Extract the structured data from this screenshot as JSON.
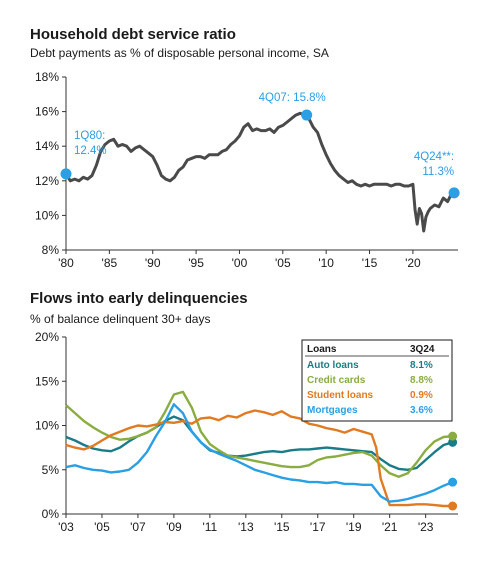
{
  "chart_data": [
    {
      "type": "line",
      "title": "Household debt service ratio",
      "subtitle": "Debt payments as % of disposable personal income, SA",
      "xlabel": "",
      "ylabel": "",
      "xlim": [
        1980,
        2025.2
      ],
      "ylim": [
        8,
        18
      ],
      "x_ticks": [
        1980,
        1985,
        1990,
        1995,
        2000,
        2005,
        2010,
        2015,
        2020
      ],
      "x_tick_labels": [
        "'80",
        "'85",
        "'90",
        "'95",
        "'00",
        "'05",
        "'10",
        "'15",
        "'20"
      ],
      "y_ticks": [
        8,
        10,
        12,
        14,
        16,
        18
      ],
      "y_tick_labels": [
        "8%",
        "10%",
        "12%",
        "14%",
        "16%",
        "18%"
      ],
      "grid": false,
      "series": [
        {
          "color": "#4a4a4a",
          "x": [
            1980.0,
            1980.5,
            1981.0,
            1981.5,
            1982.0,
            1982.5,
            1983.0,
            1983.5,
            1984.0,
            1984.5,
            1985.0,
            1985.5,
            1986.0,
            1986.5,
            1987.0,
            1987.5,
            1988.0,
            1988.5,
            1989.0,
            1989.5,
            1990.0,
            1990.5,
            1991.0,
            1991.5,
            1992.0,
            1992.5,
            1993.0,
            1993.5,
            1994.0,
            1994.5,
            1995.0,
            1995.5,
            1996.0,
            1996.5,
            1997.0,
            1997.5,
            1998.0,
            1998.5,
            1999.0,
            1999.5,
            2000.0,
            2000.5,
            2001.0,
            2001.5,
            2002.0,
            2002.5,
            2003.0,
            2003.5,
            2004.0,
            2004.5,
            2005.0,
            2005.5,
            2006.0,
            2006.5,
            2007.0,
            2007.5,
            2008.0,
            2008.5,
            2009.0,
            2009.5,
            2010.0,
            2010.5,
            2011.0,
            2011.5,
            2012.0,
            2012.5,
            2013.0,
            2013.5,
            2014.0,
            2014.5,
            2015.0,
            2015.5,
            2016.0,
            2016.5,
            2017.0,
            2017.5,
            2018.0,
            2018.5,
            2019.0,
            2019.5,
            2020.0,
            2020.25,
            2020.5,
            2020.75,
            2021.0,
            2021.25,
            2021.5,
            2021.75,
            2022.0,
            2022.5,
            2023.0,
            2023.5,
            2024.0,
            2024.5,
            2024.75
          ],
          "y": [
            12.4,
            12.0,
            12.1,
            12.0,
            12.2,
            12.1,
            12.3,
            12.9,
            13.7,
            14.1,
            14.3,
            14.4,
            14.0,
            14.1,
            14.0,
            13.7,
            13.9,
            14.0,
            13.8,
            13.6,
            13.4,
            12.9,
            12.3,
            12.1,
            12.0,
            12.2,
            12.6,
            12.8,
            13.2,
            13.3,
            13.4,
            13.4,
            13.3,
            13.5,
            13.5,
            13.5,
            13.7,
            13.8,
            14.1,
            14.3,
            14.6,
            15.1,
            15.3,
            14.9,
            15.0,
            14.9,
            14.9,
            15.0,
            14.8,
            15.1,
            15.2,
            15.4,
            15.6,
            15.8,
            15.9,
            15.8,
            15.6,
            15.1,
            14.8,
            14.1,
            13.5,
            13.0,
            12.6,
            12.3,
            12.1,
            11.9,
            12.0,
            11.8,
            11.7,
            11.8,
            11.7,
            11.8,
            11.8,
            11.8,
            11.8,
            11.7,
            11.8,
            11.8,
            11.7,
            11.7,
            11.8,
            10.3,
            9.5,
            10.4,
            10.1,
            9.1,
            9.9,
            10.2,
            10.4,
            10.6,
            10.5,
            11.0,
            10.8,
            11.3,
            11.3
          ]
        }
      ],
      "annotations": [
        {
          "label": "1Q80:",
          "value": "12.4%",
          "x": 1980.0,
          "y": 12.4
        },
        {
          "label": "4Q07:",
          "value": "15.8%",
          "x": 2007.75,
          "y": 15.8
        },
        {
          "label": "4Q24**:",
          "value": "11.3%",
          "x": 2024.75,
          "y": 11.3
        }
      ],
      "colors": {
        "line": "#4a4a4a",
        "highlight": "#2a9fe3"
      }
    },
    {
      "type": "line",
      "title": "Flows into early delinquencies",
      "subtitle": "% of balance delinquent 30+ days",
      "xlabel": "",
      "ylabel": "",
      "xlim": [
        2003,
        2024.8
      ],
      "ylim": [
        0,
        20
      ],
      "x_ticks": [
        2003,
        2005,
        2007,
        2009,
        2011,
        2013,
        2015,
        2017,
        2019,
        2021,
        2023
      ],
      "x_tick_labels": [
        "'03",
        "'05",
        "'07",
        "'09",
        "'11",
        "'13",
        "'15",
        "'17",
        "'19",
        "'21",
        "'23"
      ],
      "y_ticks": [
        0,
        5,
        10,
        15,
        20
      ],
      "y_tick_labels": [
        "0%",
        "5%",
        "10%",
        "15%",
        "20%"
      ],
      "grid": false,
      "legend": {
        "placement": "top-right",
        "header_left": "Loans",
        "header_right": "3Q24"
      },
      "series": [
        {
          "name": "Auto loans",
          "latest": "8.1%",
          "color": "#197c86",
          "x": [
            2003.0,
            2003.5,
            2004.0,
            2004.5,
            2005.0,
            2005.5,
            2006.0,
            2006.5,
            2007.0,
            2007.5,
            2008.0,
            2008.5,
            2009.0,
            2009.5,
            2010.0,
            2010.5,
            2011.0,
            2011.5,
            2012.0,
            2012.5,
            2013.0,
            2013.5,
            2014.0,
            2014.5,
            2015.0,
            2015.5,
            2016.0,
            2016.5,
            2017.0,
            2017.5,
            2018.0,
            2018.5,
            2019.0,
            2019.5,
            2020.0,
            2020.5,
            2021.0,
            2021.5,
            2022.0,
            2022.5,
            2023.0,
            2023.5,
            2024.0,
            2024.5
          ],
          "y": [
            8.7,
            8.3,
            7.8,
            7.4,
            7.2,
            7.1,
            7.5,
            8.2,
            8.8,
            9.2,
            9.8,
            10.5,
            11.0,
            10.6,
            9.3,
            8.1,
            7.2,
            6.9,
            6.6,
            6.5,
            6.6,
            6.8,
            7.0,
            7.1,
            7.0,
            7.2,
            7.3,
            7.3,
            7.4,
            7.5,
            7.4,
            7.3,
            7.2,
            7.1,
            7.0,
            6.2,
            5.5,
            5.1,
            5.0,
            5.2,
            6.1,
            7.0,
            7.8,
            8.1
          ]
        },
        {
          "name": "Credit cards",
          "latest": "8.8%",
          "color": "#8aac40",
          "x": [
            2003.0,
            2003.5,
            2004.0,
            2004.5,
            2005.0,
            2005.5,
            2006.0,
            2006.5,
            2007.0,
            2007.5,
            2008.0,
            2008.5,
            2009.0,
            2009.5,
            2010.0,
            2010.5,
            2011.0,
            2011.5,
            2012.0,
            2012.5,
            2013.0,
            2013.5,
            2014.0,
            2014.5,
            2015.0,
            2015.5,
            2016.0,
            2016.5,
            2017.0,
            2017.5,
            2018.0,
            2018.5,
            2019.0,
            2019.5,
            2020.0,
            2020.5,
            2021.0,
            2021.5,
            2022.0,
            2022.5,
            2023.0,
            2023.5,
            2024.0,
            2024.5
          ],
          "y": [
            12.3,
            11.4,
            10.5,
            9.8,
            9.2,
            8.7,
            8.4,
            8.5,
            8.8,
            9.2,
            9.8,
            11.5,
            13.5,
            13.8,
            12.0,
            9.3,
            7.9,
            7.2,
            6.6,
            6.4,
            6.2,
            6.0,
            5.8,
            5.6,
            5.4,
            5.3,
            5.3,
            5.5,
            6.1,
            6.4,
            6.5,
            6.7,
            6.9,
            7.0,
            6.6,
            5.5,
            4.6,
            4.2,
            4.6,
            5.8,
            7.2,
            8.2,
            8.7,
            8.8
          ]
        },
        {
          "name": "Student loans",
          "latest": "0.9%",
          "color": "#e07b22",
          "x": [
            2003.0,
            2003.5,
            2004.0,
            2004.5,
            2005.0,
            2005.5,
            2006.0,
            2006.5,
            2007.0,
            2007.5,
            2008.0,
            2008.5,
            2009.0,
            2009.5,
            2010.0,
            2010.5,
            2011.0,
            2011.5,
            2012.0,
            2012.5,
            2013.0,
            2013.5,
            2014.0,
            2014.5,
            2015.0,
            2015.5,
            2016.0,
            2016.5,
            2017.0,
            2017.5,
            2018.0,
            2018.5,
            2019.0,
            2019.5,
            2020.0,
            2020.25,
            2020.5,
            2021.0,
            2021.5,
            2022.0,
            2022.5,
            2023.0,
            2023.5,
            2024.0,
            2024.5
          ],
          "y": [
            7.8,
            7.5,
            7.3,
            7.7,
            8.3,
            8.9,
            9.3,
            9.7,
            10.0,
            9.9,
            10.1,
            10.4,
            10.3,
            10.5,
            10.2,
            10.8,
            10.9,
            10.6,
            11.1,
            10.9,
            11.4,
            11.7,
            11.5,
            11.2,
            11.6,
            11.0,
            10.8,
            10.2,
            10.0,
            9.7,
            9.5,
            9.2,
            9.6,
            9.3,
            9.0,
            7.5,
            4.0,
            1.0,
            1.0,
            1.0,
            1.1,
            1.1,
            1.0,
            0.9,
            0.9
          ]
        },
        {
          "name": "Mortgages",
          "latest": "3.6%",
          "color": "#2a9fe3",
          "x": [
            2003.0,
            2003.5,
            2004.0,
            2004.5,
            2005.0,
            2005.5,
            2006.0,
            2006.5,
            2007.0,
            2007.5,
            2008.0,
            2008.5,
            2009.0,
            2009.5,
            2010.0,
            2010.5,
            2011.0,
            2011.5,
            2012.0,
            2012.5,
            2013.0,
            2013.5,
            2014.0,
            2014.5,
            2015.0,
            2015.5,
            2016.0,
            2016.5,
            2017.0,
            2017.5,
            2018.0,
            2018.5,
            2019.0,
            2019.5,
            2020.0,
            2020.5,
            2021.0,
            2021.5,
            2022.0,
            2022.5,
            2023.0,
            2023.5,
            2024.0,
            2024.5
          ],
          "y": [
            5.3,
            5.5,
            5.2,
            5.0,
            4.9,
            4.7,
            4.8,
            5.0,
            5.8,
            7.0,
            8.8,
            10.4,
            12.4,
            11.4,
            9.3,
            8.1,
            7.3,
            6.8,
            6.4,
            6.0,
            5.5,
            5.0,
            4.7,
            4.4,
            4.1,
            3.9,
            3.8,
            3.6,
            3.6,
            3.5,
            3.6,
            3.4,
            3.4,
            3.3,
            3.3,
            2.0,
            1.4,
            1.5,
            1.7,
            2.0,
            2.3,
            2.7,
            3.2,
            3.6
          ]
        }
      ]
    }
  ]
}
